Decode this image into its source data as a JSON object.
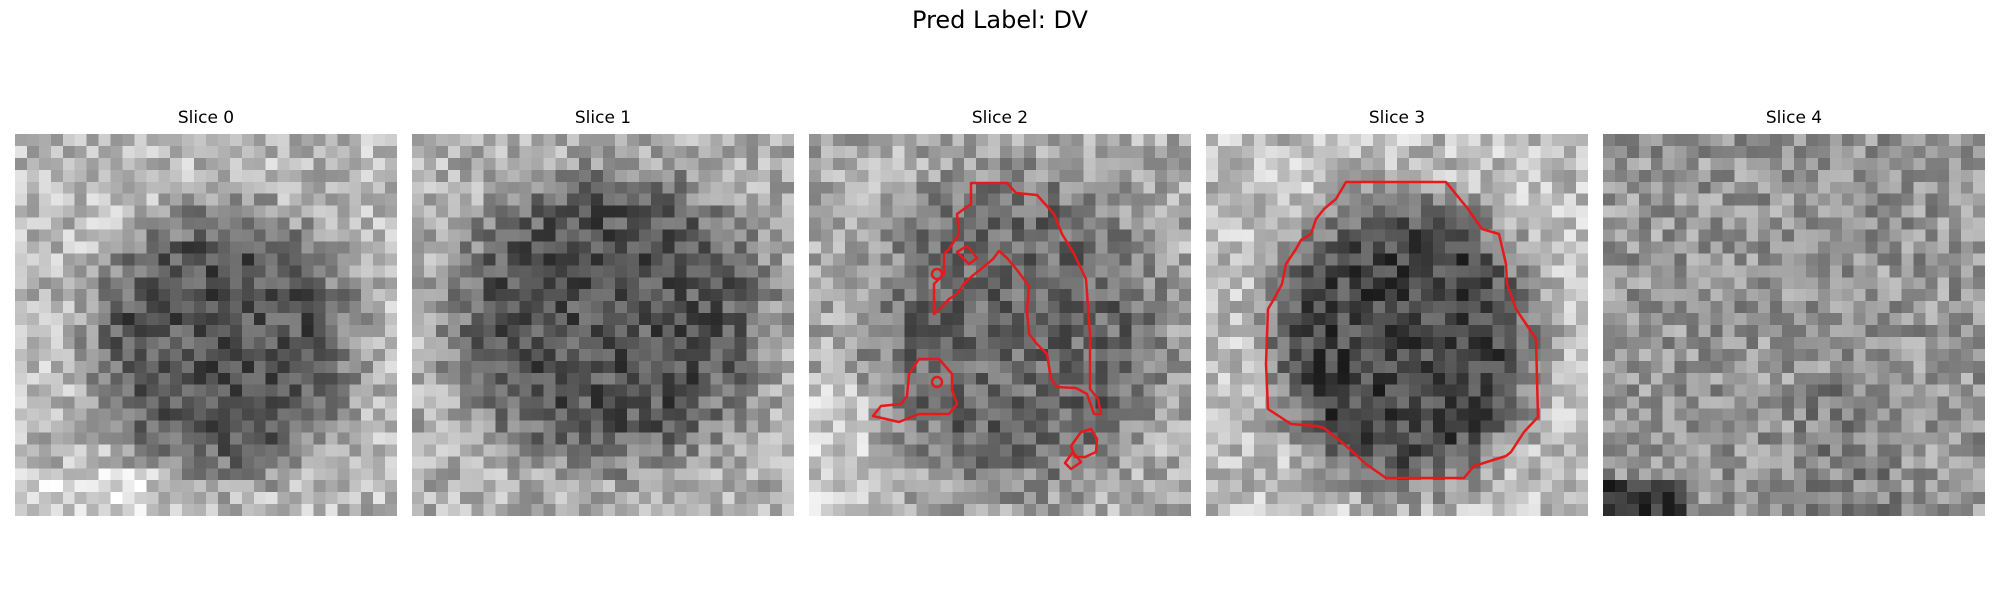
{
  "figure": {
    "suptitle": "Pred Label: DV",
    "contour_color": "#e41a1c",
    "colormap": "gray"
  },
  "panels": [
    {
      "title": "Slice 0",
      "image": "grayscale-em-patch",
      "has_contour": false
    },
    {
      "title": "Slice 1",
      "image": "grayscale-em-patch",
      "has_contour": false
    },
    {
      "title": "Slice 2",
      "image": "grayscale-em-patch",
      "has_contour": true
    },
    {
      "title": "Slice 3",
      "image": "grayscale-em-patch",
      "has_contour": true
    },
    {
      "title": "Slice 4",
      "image": "grayscale-em-patch",
      "has_contour": false
    }
  ]
}
